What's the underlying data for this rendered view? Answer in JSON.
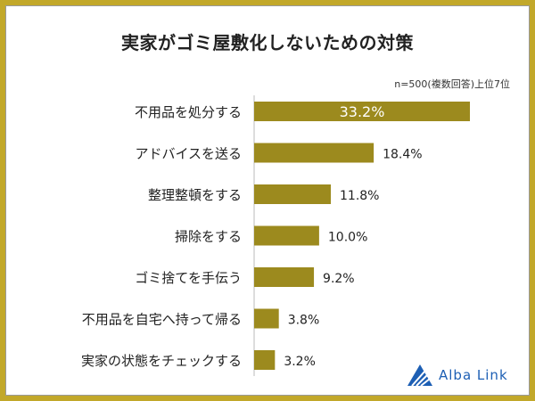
{
  "chart_data": {
    "type": "bar",
    "orientation": "horizontal",
    "title": "実家がゴミ屋敷化しないための対策",
    "subtitle": "n=500(複数回答)上位7位",
    "categories": [
      "不用品を処分する",
      "アドバイスを送る",
      "整理整頓をする",
      "掃除をする",
      "ゴミ捨てを手伝う",
      "不用品を自宅へ持って帰る",
      "実家の状態をチェックする"
    ],
    "values": [
      33.2,
      18.4,
      11.8,
      10.0,
      9.2,
      3.8,
      3.2
    ],
    "data_labels": [
      "33.2%",
      "18.4%",
      "11.8%",
      "10.0%",
      "9.2%",
      "3.8%",
      "3.2%"
    ],
    "xlim": [
      0,
      33.2
    ],
    "grid": false,
    "bar_color": "#9c8a1e",
    "frame_color": "#c2a82a"
  },
  "branding": {
    "logo_text": "Alba Link",
    "logo_color": "#1d5fb4"
  }
}
